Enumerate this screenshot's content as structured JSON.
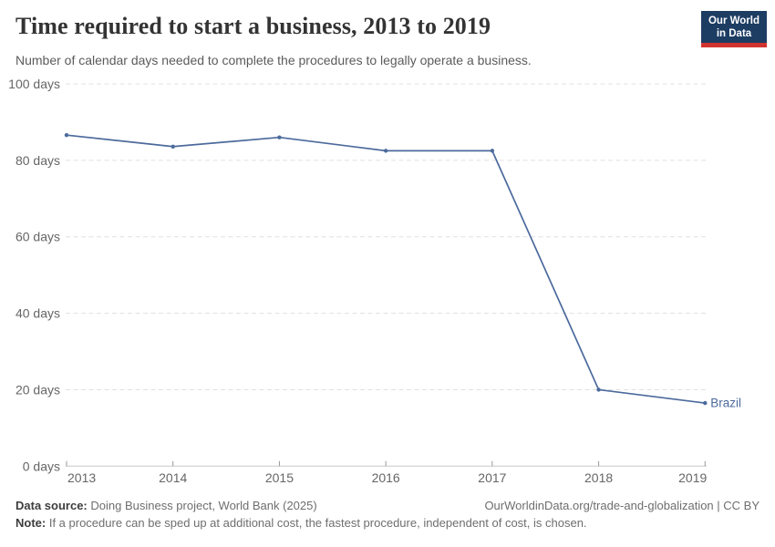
{
  "header": {
    "title": "Time required to start a business, 2013 to 2019",
    "subtitle": "Number of calendar days needed to complete the procedures to legally operate a business.",
    "logo": {
      "line1": "Our World",
      "line2": "in Data",
      "bg_color": "#1d3d63",
      "bar_color": "#d1342f"
    }
  },
  "chart_data": {
    "type": "line",
    "title": "Time required to start a business, 2013 to 2019",
    "x": [
      2013,
      2014,
      2015,
      2016,
      2017,
      2018,
      2019
    ],
    "series": [
      {
        "name": "Brazil",
        "color": "#4C6A9C",
        "values": [
          86.6,
          83.6,
          86,
          82.5,
          82.5,
          20,
          16.5
        ]
      }
    ],
    "xlabel": "",
    "ylabel": "days",
    "ylim": [
      0,
      100
    ],
    "yticks": [
      0,
      20,
      40,
      60,
      80,
      100
    ],
    "ytick_suffix": " days",
    "grid": true,
    "gridline_color": "#e0e0e0",
    "axis_color": "#c8c8c8",
    "tick_color": "#999999",
    "tick_label_color": "#666666",
    "legend_position": "end-of-line"
  },
  "footer": {
    "source_label": "Data source:",
    "source_text": " Doing Business project, World Bank (2025)",
    "credit": "OurWorldinData.org/trade-and-globalization | CC BY",
    "note_label": "Note:",
    "note_text": " If a procedure can be sped up at additional cost, the fastest procedure, independent of cost, is chosen."
  }
}
